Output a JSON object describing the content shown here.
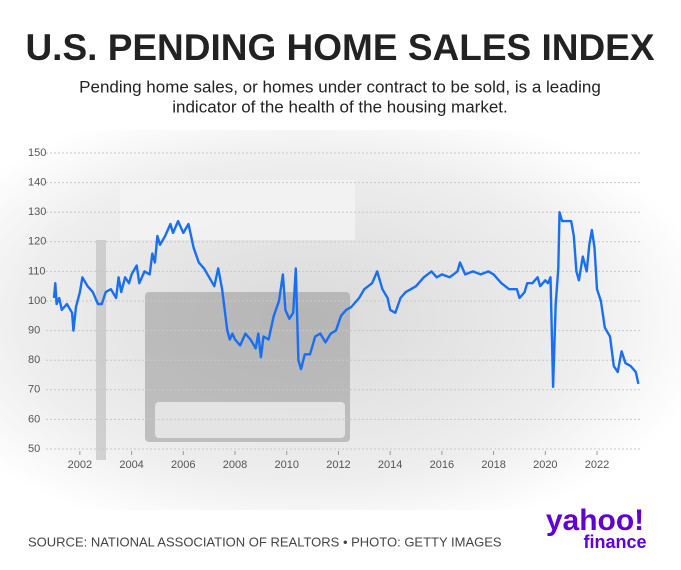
{
  "chart_data": {
    "type": "line",
    "title": "U.S. PENDING HOME SALES INDEX",
    "subtitle": [
      "Pending home sales, or homes under contract to be sold, is a leading",
      "indicator of the health of the housing market."
    ],
    "source": "SOURCE: NATIONAL ASSOCIATION OF REALTORS • PHOTO: GETTY IMAGES",
    "logo": [
      "yahoo!",
      "finance"
    ],
    "xlim": [
      2001,
      2023.7
    ],
    "xticks": [
      2002,
      2004,
      2006,
      2008,
      2010,
      2012,
      2014,
      2016,
      2018,
      2020,
      2022
    ],
    "ylim": [
      50,
      150
    ],
    "yticks": [
      50,
      60,
      70,
      80,
      90,
      100,
      110,
      120,
      130,
      140,
      150
    ],
    "grid": true,
    "series": [
      {
        "name": "Pending Home Sales Index",
        "color": "#1a6ff0",
        "x": [
          2001.0,
          2001.05,
          2001.1,
          2001.2,
          2001.3,
          2001.5,
          2001.7,
          2001.75,
          2001.85,
          2002.0,
          2002.1,
          2002.3,
          2002.5,
          2002.7,
          2002.85,
          2003.0,
          2003.2,
          2003.4,
          2003.5,
          2003.6,
          2003.75,
          2003.9,
          2004.0,
          2004.2,
          2004.3,
          2004.5,
          2004.7,
          2004.8,
          2004.9,
          2005.0,
          2005.1,
          2005.3,
          2005.5,
          2005.6,
          2005.8,
          2006.0,
          2006.2,
          2006.4,
          2006.6,
          2006.8,
          2007.0,
          2007.2,
          2007.35,
          2007.5,
          2007.7,
          2007.8,
          2007.9,
          2008.0,
          2008.2,
          2008.4,
          2008.6,
          2008.8,
          2008.9,
          2009.0,
          2009.1,
          2009.3,
          2009.5,
          2009.7,
          2009.85,
          2009.95,
          2010.1,
          2010.25,
          2010.35,
          2010.45,
          2010.55,
          2010.7,
          2010.9,
          2011.1,
          2011.3,
          2011.5,
          2011.7,
          2011.9,
          2012.1,
          2012.3,
          2012.5,
          2012.8,
          2013.0,
          2013.3,
          2013.5,
          2013.7,
          2013.9,
          2014.0,
          2014.2,
          2014.4,
          2014.6,
          2014.8,
          2015.0,
          2015.3,
          2015.6,
          2015.8,
          2016.0,
          2016.3,
          2016.6,
          2016.7,
          2016.9,
          2017.2,
          2017.5,
          2017.8,
          2018.0,
          2018.3,
          2018.6,
          2018.9,
          2019.0,
          2019.2,
          2019.3,
          2019.5,
          2019.7,
          2019.8,
          2020.0,
          2020.1,
          2020.2,
          2020.3,
          2020.4,
          2020.5,
          2020.55,
          2020.65,
          2020.8,
          2021.0,
          2021.1,
          2021.2,
          2021.3,
          2021.45,
          2021.6,
          2021.7,
          2021.8,
          2021.9,
          2022.0,
          2022.15,
          2022.3,
          2022.5,
          2022.65,
          2022.8,
          2022.95,
          2023.1,
          2023.3,
          2023.5,
          2023.6
        ],
        "values": [
          101,
          106,
          99,
          101,
          97,
          99,
          96,
          90,
          98,
          103,
          108,
          105,
          103,
          99,
          99,
          103,
          104,
          101,
          108,
          103,
          108,
          106,
          109,
          112,
          106,
          110,
          109,
          116,
          113,
          122,
          119,
          122,
          126,
          123,
          127,
          123,
          126,
          118,
          113,
          111,
          108,
          105,
          111,
          104,
          90,
          87,
          89,
          87,
          85,
          89,
          87,
          84,
          89,
          81,
          88,
          87,
          95,
          100,
          109,
          97,
          94,
          96,
          111,
          80,
          77,
          82,
          82,
          88,
          89,
          86,
          89,
          90,
          95,
          97,
          98,
          101,
          104,
          106,
          110,
          104,
          101,
          97,
          96,
          101,
          103,
          104,
          105,
          108,
          110,
          108,
          109,
          108,
          110,
          113,
          109,
          110,
          109,
          110,
          109,
          106,
          104,
          104,
          101,
          103,
          106,
          106,
          108,
          105,
          107,
          106,
          108,
          71,
          99,
          111,
          130,
          127,
          127,
          127,
          122,
          110,
          107,
          115,
          110,
          119,
          124,
          118,
          104,
          100,
          91,
          88,
          78,
          76,
          83,
          79,
          78,
          76,
          72
        ]
      }
    ]
  }
}
